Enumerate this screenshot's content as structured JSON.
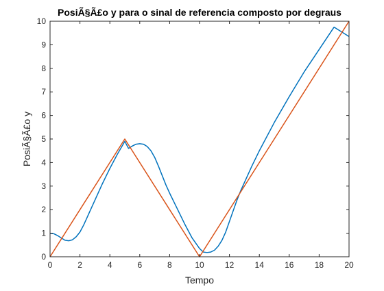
{
  "chart_data": {
    "type": "line",
    "title": "PosiÃ§Ã£o y para o sinal de referencia composto por degraus",
    "xlabel": "Tempo",
    "ylabel": "PosiÃ§Ã£o y",
    "xlim": [
      0,
      20
    ],
    "ylim": [
      0,
      10
    ],
    "xticks": [
      "0",
      "2",
      "4",
      "6",
      "8",
      "10",
      "12",
      "14",
      "16",
      "18",
      "20"
    ],
    "yticks": [
      "0",
      "1",
      "2",
      "3",
      "4",
      "5",
      "6",
      "7",
      "8",
      "9",
      "10"
    ],
    "grid": false,
    "legend": "none",
    "series": [
      {
        "color": "#0072BD",
        "x": [
          0,
          0.25,
          0.5,
          0.75,
          1,
          1.25,
          1.5,
          1.75,
          2,
          2.25,
          2.5,
          2.75,
          3,
          3.5,
          4,
          4.5,
          5,
          5.25,
          5.5,
          5.75,
          6,
          6.25,
          6.5,
          6.75,
          7,
          7.25,
          7.5,
          7.75,
          8,
          8.5,
          9,
          9.5,
          10,
          10.25,
          10.5,
          10.75,
          11,
          11.25,
          11.5,
          11.75,
          12,
          12.25,
          12.5,
          12.75,
          13,
          13.5,
          14,
          15,
          16,
          17,
          18,
          19,
          20
        ],
        "y": [
          1.0,
          0.98,
          0.9,
          0.8,
          0.7,
          0.68,
          0.72,
          0.85,
          1.05,
          1.35,
          1.7,
          2.05,
          2.4,
          3.1,
          3.75,
          4.35,
          4.9,
          4.6,
          4.7,
          4.78,
          4.8,
          4.78,
          4.68,
          4.5,
          4.22,
          3.85,
          3.45,
          3.05,
          2.7,
          2.05,
          1.4,
          0.8,
          0.35,
          0.2,
          0.18,
          0.2,
          0.28,
          0.45,
          0.7,
          1.05,
          1.5,
          1.95,
          2.4,
          2.8,
          3.15,
          3.85,
          4.5,
          5.7,
          6.8,
          7.85,
          8.8,
          9.75,
          9.35
        ]
      },
      {
        "color": "#D95319",
        "x": [
          0,
          5,
          10,
          20
        ],
        "y": [
          0,
          5,
          0,
          10
        ]
      }
    ]
  }
}
